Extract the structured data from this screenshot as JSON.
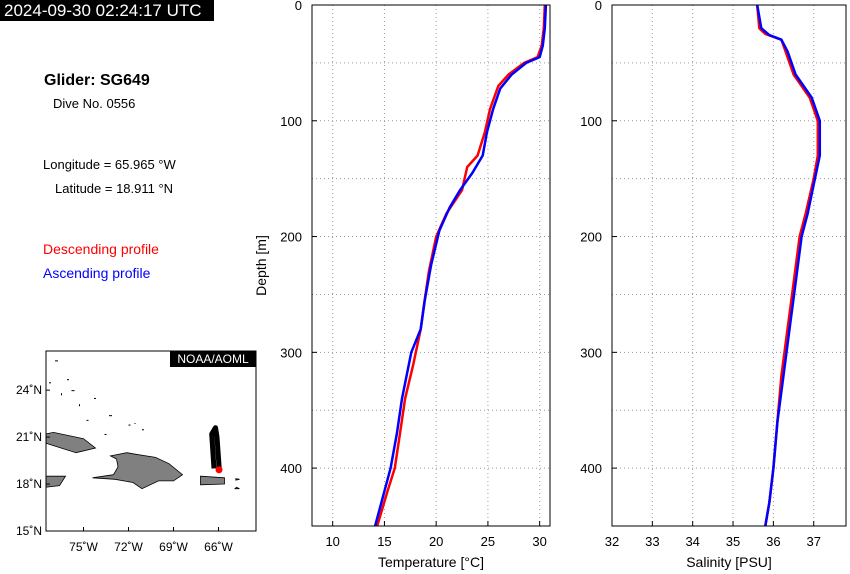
{
  "header": {
    "timestamp": "2024-09-30 02:24:17 UTC",
    "glider_title": "Glider: SG649",
    "dive_number": "Dive No. 0556",
    "longitude": "Longitude = 65.965 °W",
    "latitude": "Latitude = 18.911 °N"
  },
  "legend": {
    "descending": "Descending profile",
    "ascending": "Ascending profile",
    "descending_color": "#ff0000",
    "ascending_color": "#0000ff"
  },
  "map": {
    "credit": "NOAA/AOML",
    "lat_ticks": [
      "24˚N",
      "21˚N",
      "18˚N",
      "15˚N"
    ],
    "lon_ticks": [
      "75˚W",
      "72˚W",
      "69˚W",
      "66˚W"
    ],
    "lon_range": [
      -77.5,
      -63.5
    ],
    "lat_range": [
      15,
      26.5
    ],
    "glider_track": [
      [
        -66.3,
        19.0
      ],
      [
        -66.45,
        21.2
      ],
      [
        -66.2,
        21.6
      ],
      [
        -66.1,
        21.0
      ],
      [
        -65.95,
        19.0
      ],
      [
        -65.97,
        18.911
      ]
    ],
    "glider_position": [
      -65.965,
      18.911
    ],
    "land_color": "#808080",
    "track_color": "#000000",
    "position_color": "#ff0000"
  },
  "chart_data": [
    {
      "type": "line",
      "title": "",
      "xlabel": "Temperature [°C]",
      "ylabel": "Depth [m]",
      "xlim": [
        8,
        31
      ],
      "ylim": [
        450,
        0
      ],
      "x_ticks": [
        10,
        15,
        20,
        25,
        30
      ],
      "y_ticks": [
        0,
        100,
        200,
        300,
        400
      ],
      "grid": true,
      "series": [
        {
          "color": "#ff0000",
          "x": [
            30.5,
            30.4,
            30.2,
            29.8,
            28.5,
            27.0,
            26.0,
            25.2,
            24.7,
            24.0,
            23.0,
            22.5,
            21.0,
            20.0,
            19.3,
            18.8,
            18.5,
            17.8,
            17.0,
            16.5,
            16.0,
            15.3,
            14.3
          ],
          "y": [
            0,
            20,
            35,
            45,
            50,
            60,
            70,
            90,
            110,
            130,
            140,
            160,
            180,
            200,
            230,
            260,
            280,
            310,
            340,
            370,
            400,
            420,
            450
          ]
        },
        {
          "color": "#0000ff",
          "x": [
            30.6,
            30.5,
            30.3,
            30.0,
            28.7,
            27.3,
            26.2,
            25.5,
            24.9,
            24.5,
            23.5,
            22.3,
            21.3,
            20.3,
            19.5,
            18.9,
            18.5,
            17.6,
            16.7,
            16.2,
            15.6,
            15.0,
            14.1
          ],
          "y": [
            0,
            20,
            35,
            45,
            50,
            60,
            72,
            90,
            110,
            130,
            145,
            160,
            175,
            195,
            225,
            255,
            280,
            300,
            340,
            370,
            400,
            420,
            450
          ]
        }
      ]
    },
    {
      "type": "line",
      "title": "",
      "xlabel": "Salinity [PSU]",
      "ylabel": "",
      "xlim": [
        32,
        37.8
      ],
      "ylim": [
        450,
        0
      ],
      "x_ticks": [
        32,
        33,
        34,
        35,
        36,
        37
      ],
      "y_ticks": [
        0,
        100,
        200,
        300,
        400
      ],
      "grid": true,
      "series": [
        {
          "color": "#ff0000",
          "x": [
            35.6,
            35.65,
            35.8,
            36.2,
            36.3,
            36.5,
            36.9,
            37.1,
            37.1,
            37.0,
            36.8,
            36.65,
            36.5,
            36.35,
            36.2,
            36.1,
            36.0,
            35.9,
            35.8
          ],
          "y": [
            0,
            20,
            25,
            30,
            40,
            60,
            80,
            100,
            130,
            150,
            180,
            200,
            240,
            280,
            320,
            360,
            400,
            430,
            450
          ]
        },
        {
          "color": "#0000ff",
          "x": [
            35.6,
            35.7,
            35.9,
            36.2,
            36.35,
            36.55,
            36.95,
            37.15,
            37.15,
            37.0,
            36.85,
            36.7,
            36.55,
            36.4,
            36.25,
            36.1,
            36.0,
            35.9,
            35.8
          ],
          "y": [
            0,
            20,
            26,
            30,
            40,
            60,
            80,
            100,
            130,
            155,
            180,
            200,
            240,
            280,
            320,
            360,
            400,
            430,
            450
          ]
        }
      ]
    }
  ]
}
